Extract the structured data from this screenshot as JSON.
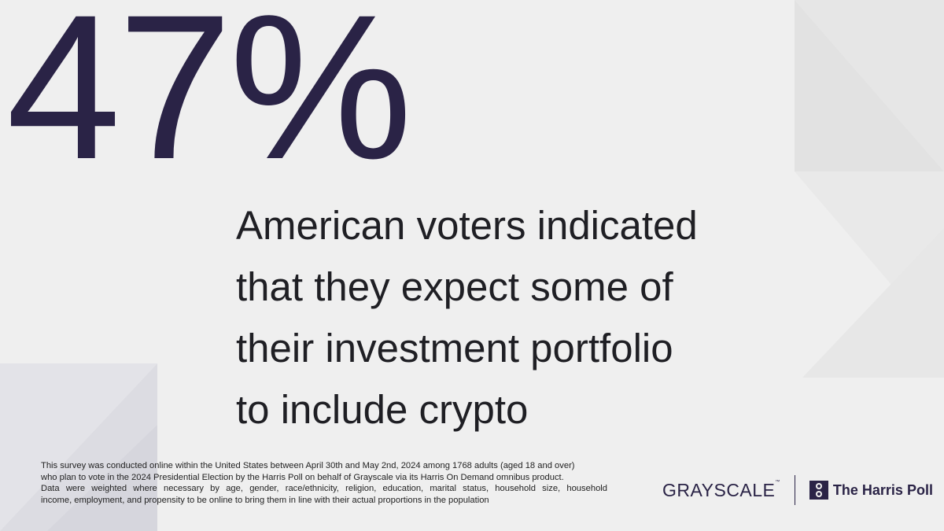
{
  "stat": {
    "value": "47%"
  },
  "headline": {
    "lines": [
      "American voters indicated",
      "that they expect some of",
      "their investment portfolio",
      "to include crypto"
    ]
  },
  "footnote": {
    "lines": [
      "This survey was conducted online within the United States between April 30th and May 2nd, 2024 among 1768 adults (aged 18 and over)",
      "who plan to vote in the 2024 Presidential Election by the Harris Poll on behalf of Grayscale via its Harris On Demand omnibus product.",
      "Data were weighted where necessary by age, gender, race/ethnicity, religion, education, marital status, household size, household",
      "income, employment, and propensity to be online to bring them in line with their actual proportions in the population"
    ]
  },
  "logos": {
    "grayscale": "GRAYSCALE",
    "grayscale_tm": "™",
    "harris": "The Harris Poll"
  },
  "colors": {
    "accent": "#2a2346",
    "background": "#efefef"
  }
}
